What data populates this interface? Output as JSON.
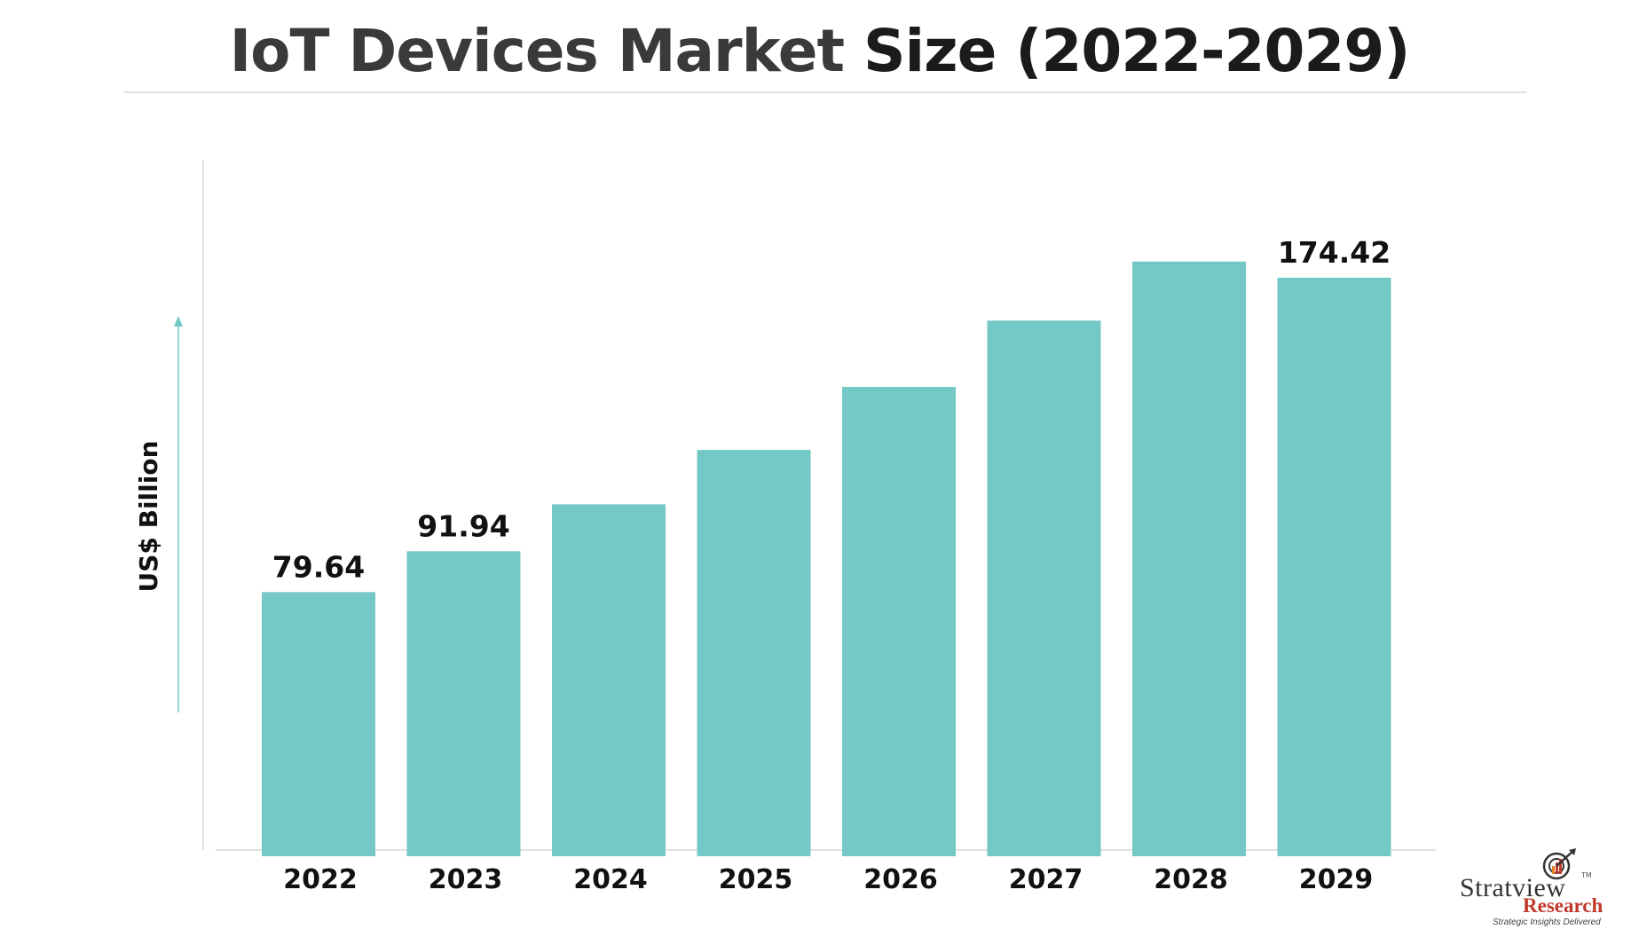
{
  "title_part1": "IoT Devices Market",
  "title_part2": "Size (2022-2029)",
  "colors": {
    "bar": "#74c8c5",
    "axis": "#d9d9d9",
    "arrow": "#74c8c5",
    "text": "#111111"
  },
  "chart_data": {
    "type": "bar",
    "title": "IoT Devices Market Size (2022-2029)",
    "ylabel": "US$ Billion",
    "xlabel": "",
    "categories": [
      "2022",
      "2023",
      "2024",
      "2025",
      "2026",
      "2027",
      "2028",
      "2029"
    ],
    "values": [
      79.64,
      91.94,
      106.1,
      122.5,
      141.5,
      161.5,
      179.3,
      174.42
    ],
    "data_labels": [
      "79.64",
      "91.94",
      "",
      "",
      "",
      "",
      "",
      "174.42"
    ],
    "ylim": [
      0,
      210
    ],
    "grid": false,
    "legend": "none"
  },
  "logo": {
    "brand_line1": "Stratview",
    "brand_line2": "Research",
    "tagline": "Strategic Insights Delivered",
    "tm": "TM"
  }
}
